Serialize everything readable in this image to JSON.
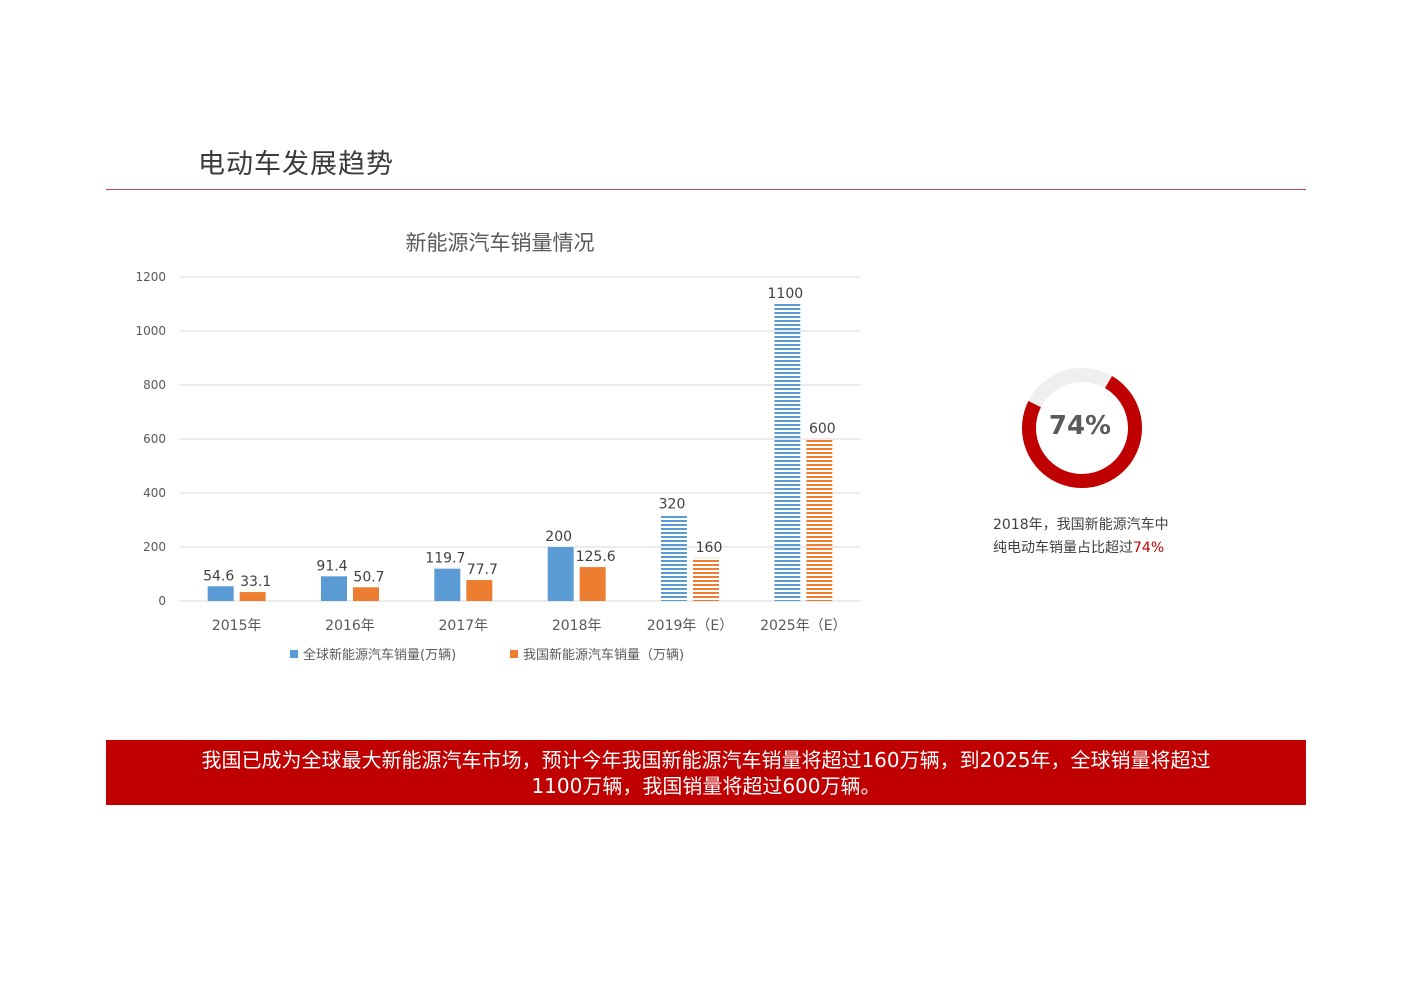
{
  "slide": {
    "title": "电动车发展趋势"
  },
  "colors": {
    "global_series": "#5b9bd5",
    "china_series": "#ed7d31",
    "accent_red": "#c00000"
  },
  "chart_data": {
    "type": "bar",
    "title": "新能源汽车销量情况",
    "categories": [
      "2015年",
      "2016年",
      "2017年",
      "2018年",
      "2019年（E）",
      "2025年（E）"
    ],
    "series": [
      {
        "name": "全球新能源汽车销量(万辆)",
        "values": [
          54.6,
          91.4,
          119.7,
          200,
          320,
          1100
        ],
        "labels": [
          "54.6",
          "91.4",
          "119.7",
          "200",
          "320",
          "1100"
        ]
      },
      {
        "name": "我国新能源汽车销量（万辆)",
        "values": [
          33.1,
          50.7,
          77.7,
          125.6,
          160,
          600
        ],
        "labels": [
          "33.1",
          "50.7",
          "77.7",
          "125.6",
          "160",
          "600"
        ]
      }
    ],
    "estimated_categories": [
      4,
      5
    ],
    "ylim": [
      0,
      1200
    ],
    "yticks": [
      "0",
      "200",
      "400",
      "600",
      "800",
      "1000",
      "1200"
    ],
    "grid": true,
    "legend": "bottom"
  },
  "donut": {
    "value": 74,
    "label": "74%",
    "caption_line1": "2018年，我国新能源汽车中",
    "caption_line2_prefix": "纯电动车销量占比超过",
    "caption_line2_highlight": "74%"
  },
  "banner": {
    "line1": "我国已成为全球最大新能源汽车市场，预计今年我国新能源汽车销量将超过160万辆，到2025年，全球销量将超过",
    "line2": "1100万辆，我国销量将超过600万辆。"
  }
}
